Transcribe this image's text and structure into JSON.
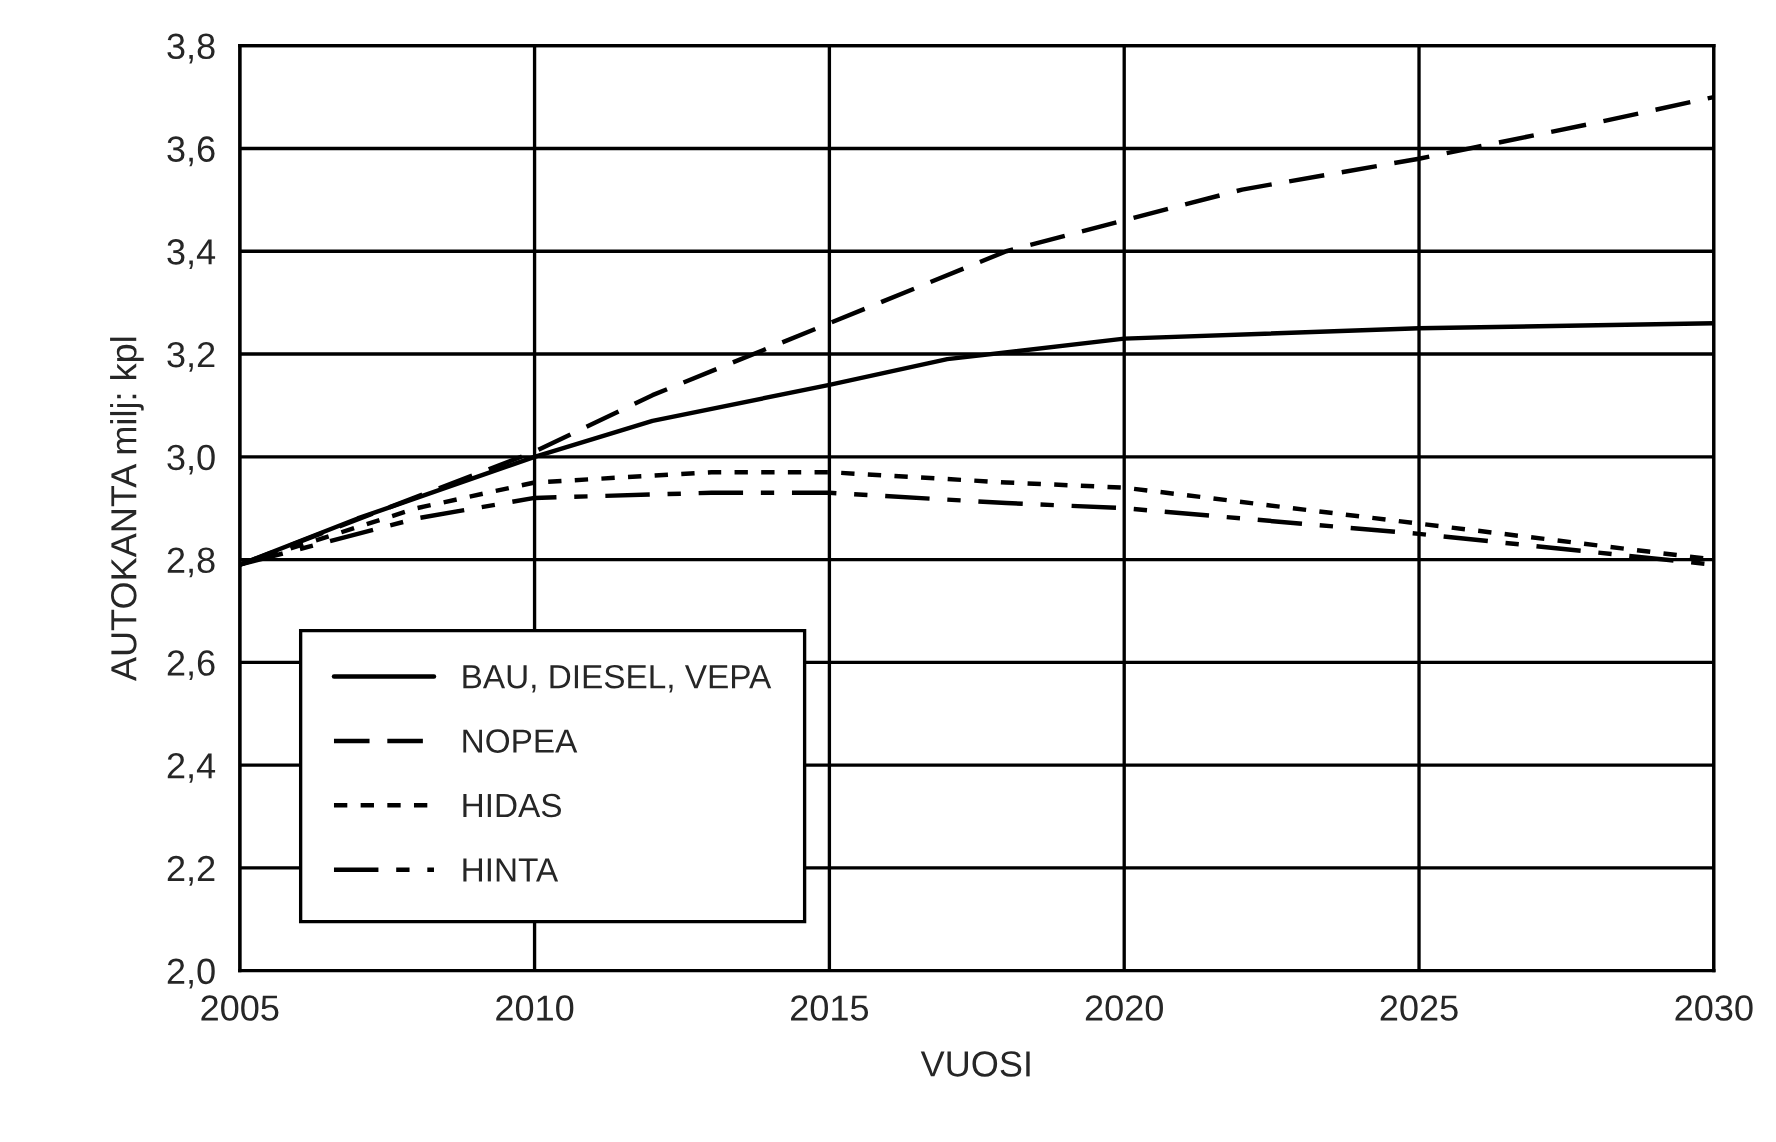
{
  "chart_data": {
    "type": "line",
    "xlabel": "VUOSI",
    "ylabel": "AUTOKANTA milj: kpl",
    "xlim": [
      2005,
      2030
    ],
    "xticks": [
      2005,
      2010,
      2015,
      2020,
      2025,
      2030
    ],
    "ylim": [
      2.0,
      3.8
    ],
    "yticks": [
      {
        "value": 2.0,
        "label": "2,0"
      },
      {
        "value": 2.2,
        "label": "2,2"
      },
      {
        "value": 2.4,
        "label": "2,4"
      },
      {
        "value": 2.6,
        "label": "2,6"
      },
      {
        "value": 2.8,
        "label": "2,8"
      },
      {
        "value": 3.0,
        "label": "3,0"
      },
      {
        "value": 3.2,
        "label": "3,2"
      },
      {
        "value": 3.4,
        "label": "3,4"
      },
      {
        "value": 3.6,
        "label": "3,6"
      },
      {
        "value": 3.8,
        "label": "3,8"
      }
    ],
    "grid": true,
    "legend": "bottom left",
    "series": [
      {
        "name": "BAU, DIESEL, VEPA",
        "color": "#000000",
        "line_style": "solid",
        "x": [
          2005,
          2007,
          2010,
          2012,
          2015,
          2017,
          2020,
          2025,
          2030
        ],
        "values": [
          2.79,
          2.88,
          3.0,
          3.07,
          3.14,
          3.19,
          3.23,
          3.25,
          3.26
        ]
      },
      {
        "name": "NOPEA",
        "color": "#000000",
        "line_style": "dashed",
        "x": [
          2005,
          2010,
          2012,
          2015,
          2018,
          2020,
          2022,
          2025,
          2028,
          2030
        ],
        "values": [
          2.79,
          3.01,
          3.12,
          3.26,
          3.4,
          3.46,
          3.52,
          3.58,
          3.65,
          3.7
        ]
      },
      {
        "name": "HIDAS",
        "color": "#000000",
        "line_style": "dotted",
        "x": [
          2005,
          2008,
          2010,
          2013,
          2015,
          2018,
          2020,
          2025,
          2030
        ],
        "values": [
          2.79,
          2.9,
          2.95,
          2.97,
          2.97,
          2.95,
          2.94,
          2.87,
          2.8
        ]
      },
      {
        "name": "HINTA",
        "color": "#000000",
        "line_style": "dashdot",
        "x": [
          2005,
          2008,
          2010,
          2013,
          2015,
          2018,
          2020,
          2025,
          2030
        ],
        "values": [
          2.79,
          2.88,
          2.92,
          2.93,
          2.93,
          2.91,
          2.9,
          2.85,
          2.79
        ]
      }
    ]
  }
}
